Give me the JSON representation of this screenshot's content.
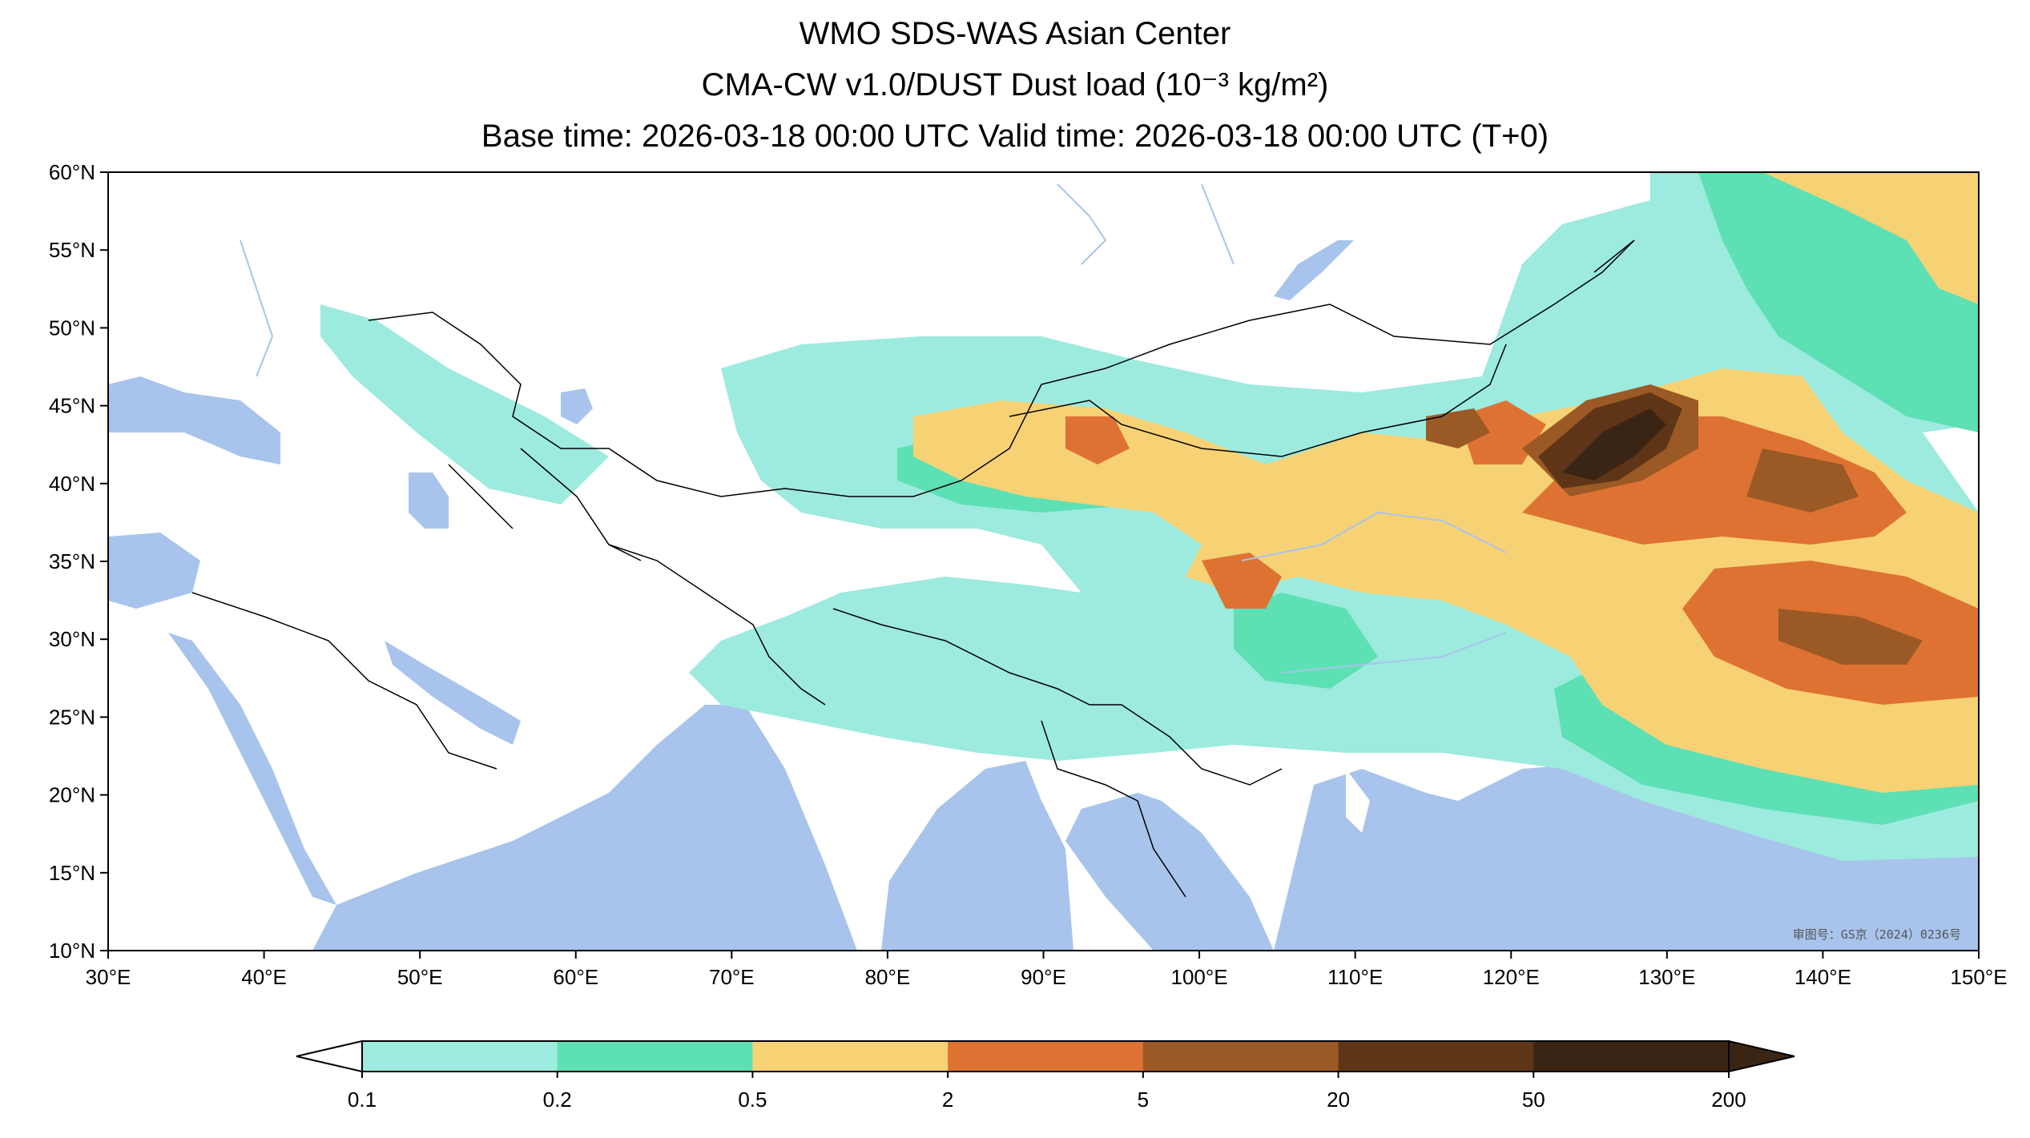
{
  "title": {
    "line1": "WMO SDS-WAS Asian Center",
    "line2": "CMA-CW v1.0/DUST Dust load (10⁻³ kg/m²)",
    "line3": "Base time: 2026-03-18 00:00 UTC Valid time: 2026-03-18 00:00 UTC (T+0)"
  },
  "map": {
    "lon_range": [
      30,
      150
    ],
    "lat_range": [
      10,
      60
    ],
    "lon_ticks": [
      "30°E",
      "40°E",
      "50°E",
      "60°E",
      "70°E",
      "80°E",
      "90°E",
      "100°E",
      "110°E",
      "120°E",
      "130°E",
      "140°E",
      "150°E"
    ],
    "lat_ticks": [
      "60°N",
      "55°N",
      "50°N",
      "45°N",
      "40°N",
      "35°N",
      "30°N",
      "25°N",
      "20°N",
      "15°N",
      "10°N"
    ],
    "ocean_color": "#a8c4ec",
    "land_color": "#ffffff",
    "approval_note": "审图号：GS京（2024）0236号"
  },
  "colorbar": {
    "levels": [
      "0.1",
      "0.2",
      "0.5",
      "2",
      "5",
      "20",
      "50",
      "200"
    ],
    "colors": [
      "#9deadf",
      "#5de0b4",
      "#f6d274",
      "#de7233",
      "#9b5a25",
      "#5e3617",
      "#3a2414"
    ],
    "extend": "both"
  }
}
